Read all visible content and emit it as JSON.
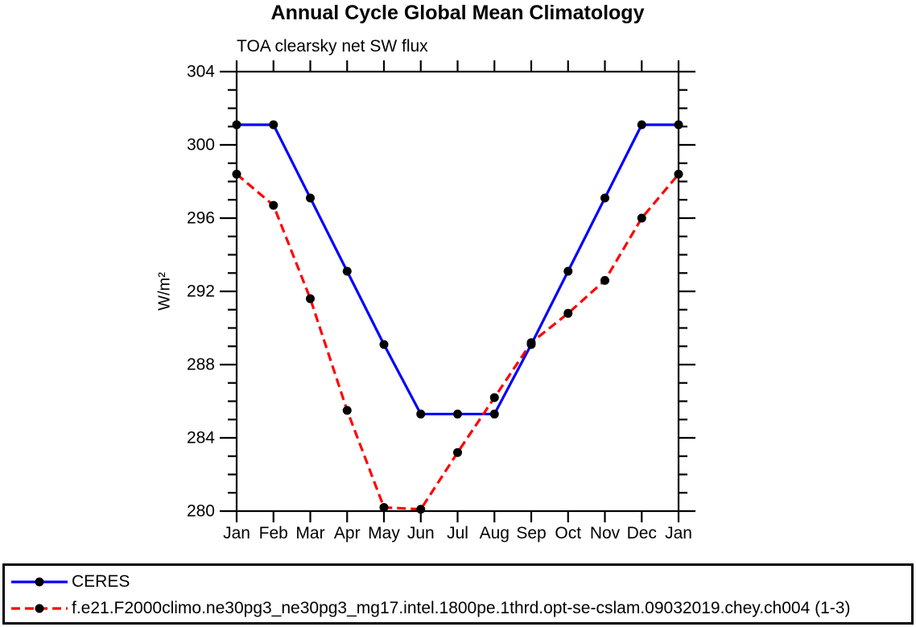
{
  "background_color": "#ffffff",
  "axis_color": "#000000",
  "chart_data": {
    "type": "line",
    "title": "Annual Cycle Global Mean Climatology",
    "subtitle": "TOA clearsky net SW flux",
    "ylabel": "W/m²",
    "ylim": [
      280,
      304
    ],
    "y_major_tick_step": 4,
    "y_minor_tick_step": 1,
    "grid": false,
    "legend_position": "bottom-left-box",
    "x_tick_labels": [
      "Jan",
      "Feb",
      "Mar",
      "Apr",
      "May",
      "Jun",
      "Jul",
      "Aug",
      "Sep",
      "Oct",
      "Nov",
      "Dec",
      "Jan"
    ],
    "series": [
      {
        "name": "CERES",
        "color": "#0000ff",
        "line_style": "solid",
        "marker": "filled-circle",
        "marker_color": "#000000",
        "values": [
          301.1,
          301.1,
          297.1,
          293.1,
          289.1,
          285.3,
          285.3,
          285.3,
          289.1,
          293.1,
          297.1,
          301.1,
          301.1
        ]
      },
      {
        "name": "f.e21.F2000climo.ne30pg3_ne30pg3_mg17.intel.1800pe.1thrd.opt-se-cslam.09032019.chey.ch004 (1-3)",
        "color": "#ff0000",
        "line_style": "dashed",
        "marker": "filled-circle",
        "marker_color": "#000000",
        "values": [
          298.4,
          296.7,
          291.6,
          285.5,
          280.2,
          280.1,
          283.2,
          286.2,
          289.2,
          290.8,
          292.6,
          296.0,
          298.4
        ]
      }
    ]
  }
}
